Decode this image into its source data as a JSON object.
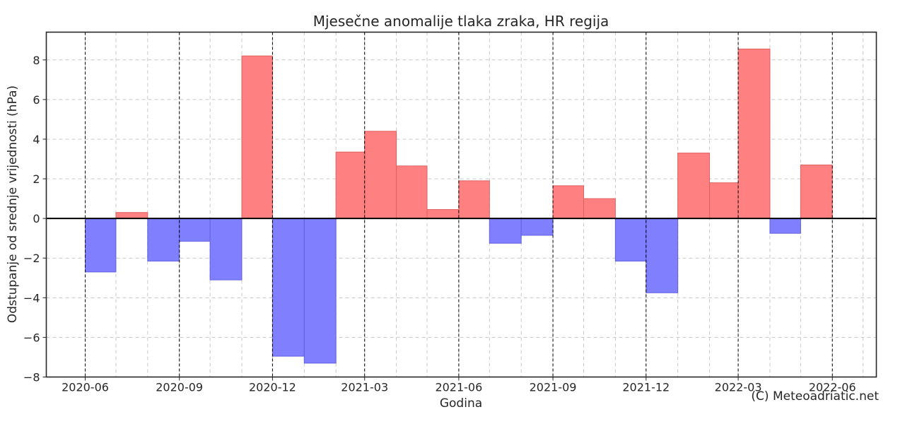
{
  "chart_data": {
    "type": "bar",
    "title": "Mjesečne anomalije tlaka zraka, HR regija",
    "xlabel": "Godina",
    "ylabel": "Odstupanje od srednje vrijednosti (hPa)",
    "ylim": [
      -8,
      9.4
    ],
    "xlim": [
      "2020-04-24",
      "2022-07-14"
    ],
    "yticks": [
      -8,
      -6,
      -4,
      -2,
      0,
      2,
      4,
      6,
      8
    ],
    "ytick_labels": [
      "−8",
      "−6",
      "−4",
      "−2",
      "0",
      "2",
      "4",
      "6",
      "8"
    ],
    "xticks": [
      {
        "date": "2020-06-01",
        "label": "2020-06"
      },
      {
        "date": "2020-09-01",
        "label": "2020-09"
      },
      {
        "date": "2020-12-01",
        "label": "2020-12"
      },
      {
        "date": "2021-03-01",
        "label": "2021-03"
      },
      {
        "date": "2021-06-01",
        "label": "2021-06"
      },
      {
        "date": "2021-09-01",
        "label": "2021-09"
      },
      {
        "date": "2021-12-01",
        "label": "2021-12"
      },
      {
        "date": "2022-03-01",
        "label": "2022-03"
      },
      {
        "date": "2022-06-01",
        "label": "2022-06"
      }
    ],
    "grid": true,
    "positive_color": "#ff8080",
    "negative_color": "#8080ff",
    "bars": [
      {
        "month": "2020-06",
        "value": -2.7
      },
      {
        "month": "2020-07",
        "value": 0.3
      },
      {
        "month": "2020-08",
        "value": -2.15
      },
      {
        "month": "2020-09",
        "value": -1.15
      },
      {
        "month": "2020-10",
        "value": -3.1
      },
      {
        "month": "2020-11",
        "value": 8.2
      },
      {
        "month": "2020-12",
        "value": -6.95
      },
      {
        "month": "2021-01",
        "value": -7.3
      },
      {
        "month": "2021-02",
        "value": 3.35
      },
      {
        "month": "2021-03",
        "value": 4.4
      },
      {
        "month": "2021-04",
        "value": 2.65
      },
      {
        "month": "2021-05",
        "value": 0.45
      },
      {
        "month": "2021-06",
        "value": 1.9
      },
      {
        "month": "2021-07",
        "value": -1.25
      },
      {
        "month": "2021-08",
        "value": -0.85
      },
      {
        "month": "2021-09",
        "value": 1.65
      },
      {
        "month": "2021-10",
        "value": 1.0
      },
      {
        "month": "2021-11",
        "value": -2.15
      },
      {
        "month": "2021-12",
        "value": -3.75
      },
      {
        "month": "2022-01",
        "value": 3.3
      },
      {
        "month": "2022-02",
        "value": 1.8
      },
      {
        "month": "2022-03",
        "value": 8.55
      },
      {
        "month": "2022-04",
        "value": -0.75
      },
      {
        "month": "2022-05",
        "value": 2.7
      }
    ]
  },
  "credit": "(C) Meteoadriatic.net"
}
